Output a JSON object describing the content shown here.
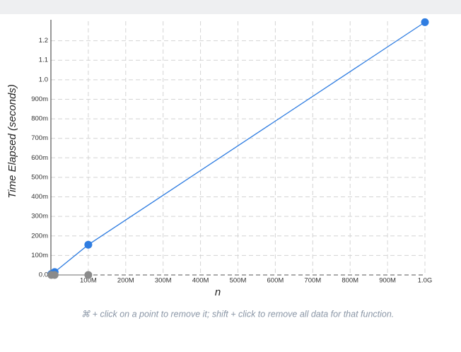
{
  "chart_data": {
    "type": "scatter-line",
    "x_label": "n",
    "y_label": "Time Elapsed (seconds)",
    "caption": "⌘ + click on a point to remove it; shift + click to remove all data for that function.",
    "xlim": [
      0,
      1000000000
    ],
    "ylim": [
      0,
      1.3
    ],
    "xticks": [
      {
        "value": 100000000,
        "label": "100M"
      },
      {
        "value": 200000000,
        "label": "200M"
      },
      {
        "value": 300000000,
        "label": "300M"
      },
      {
        "value": 400000000,
        "label": "400M"
      },
      {
        "value": 500000000,
        "label": "500M"
      },
      {
        "value": 600000000,
        "label": "600M"
      },
      {
        "value": 700000000,
        "label": "700M"
      },
      {
        "value": 800000000,
        "label": "800M"
      },
      {
        "value": 900000000,
        "label": "900M"
      },
      {
        "value": 1000000000,
        "label": "1.0G"
      }
    ],
    "yticks": [
      {
        "value": 0,
        "label": "0.0"
      },
      {
        "value": 0.1,
        "label": "100m"
      },
      {
        "value": 0.2,
        "label": "200m"
      },
      {
        "value": 0.3,
        "label": "300m"
      },
      {
        "value": 0.4,
        "label": "400m"
      },
      {
        "value": 0.5,
        "label": "500m"
      },
      {
        "value": 0.6,
        "label": "600m"
      },
      {
        "value": 0.7,
        "label": "700m"
      },
      {
        "value": 0.8,
        "label": "800m"
      },
      {
        "value": 0.9,
        "label": "900m"
      },
      {
        "value": 1.0,
        "label": "1.0"
      },
      {
        "value": 1.1,
        "label": "1.1"
      },
      {
        "value": 1.2,
        "label": "1.2"
      }
    ],
    "grid": true,
    "series": [
      {
        "color": "#2f7de1",
        "x": [
          1000000,
          10000000,
          100000000,
          1000000000
        ],
        "values": [
          0.005,
          0.015,
          0.155,
          1.295
        ]
      },
      {
        "color": "#8a8a8a",
        "x": [
          1000000,
          10000000,
          100000000
        ],
        "values": [
          0,
          0,
          0
        ]
      }
    ]
  }
}
